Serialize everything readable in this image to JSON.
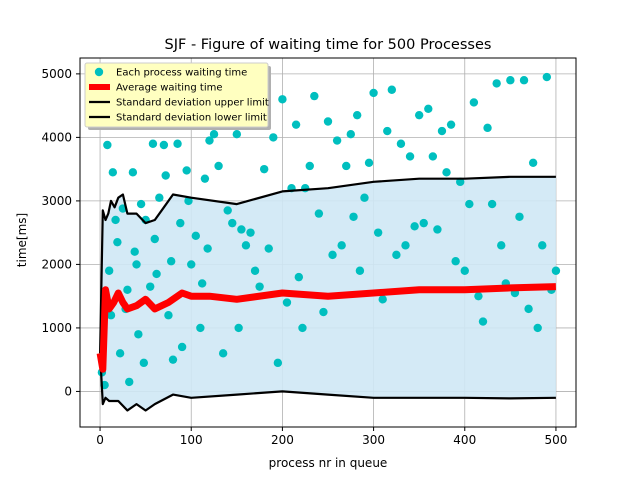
{
  "chart_data": {
    "type": "scatter",
    "title": "SJF - Figure of waiting time for 500 Processes",
    "xlabel": "process nr in queue",
    "ylabel": "time[ms]",
    "xlim": [
      -22,
      522
    ],
    "ylim": [
      -560,
      5250
    ],
    "x_ticks": [
      0,
      100,
      200,
      300,
      400,
      500
    ],
    "y_ticks": [
      0,
      1000,
      2000,
      3000,
      4000,
      5000
    ],
    "grid": true,
    "legend_position": "top-left",
    "colors": {
      "points": "#00bfbf",
      "average": "#ff0000",
      "std": "#000000",
      "band": "#cfe8f5",
      "legend_bg": "#ffffc0"
    },
    "series": [
      {
        "name": "Each process waiting time",
        "kind": "scatter",
        "sample_points": [
          [
            2,
            300
          ],
          [
            5,
            100
          ],
          [
            8,
            3880
          ],
          [
            10,
            1900
          ],
          [
            12,
            1200
          ],
          [
            14,
            3450
          ],
          [
            17,
            2700
          ],
          [
            19,
            2350
          ],
          [
            22,
            600
          ],
          [
            25,
            2880
          ],
          [
            28,
            1300
          ],
          [
            30,
            1600
          ],
          [
            32,
            150
          ],
          [
            36,
            3450
          ],
          [
            38,
            2200
          ],
          [
            40,
            2000
          ],
          [
            42,
            900
          ],
          [
            45,
            2950
          ],
          [
            48,
            450
          ],
          [
            50,
            2700
          ],
          [
            55,
            1650
          ],
          [
            58,
            3900
          ],
          [
            60,
            2400
          ],
          [
            62,
            1850
          ],
          [
            65,
            3050
          ],
          [
            70,
            3880
          ],
          [
            72,
            3400
          ],
          [
            75,
            1200
          ],
          [
            78,
            2050
          ],
          [
            80,
            500
          ],
          [
            85,
            3900
          ],
          [
            88,
            2650
          ],
          [
            90,
            700
          ],
          [
            95,
            3480
          ],
          [
            97,
            3000
          ],
          [
            100,
            2000
          ],
          [
            105,
            2450
          ],
          [
            110,
            1000
          ],
          [
            112,
            1700
          ],
          [
            115,
            3350
          ],
          [
            118,
            2250
          ],
          [
            120,
            3950
          ],
          [
            125,
            4050
          ],
          [
            130,
            3550
          ],
          [
            135,
            600
          ],
          [
            140,
            2850
          ],
          [
            145,
            2650
          ],
          [
            150,
            4050
          ],
          [
            152,
            1000
          ],
          [
            155,
            2550
          ],
          [
            160,
            2300
          ],
          [
            165,
            2500
          ],
          [
            170,
            1900
          ],
          [
            175,
            1650
          ],
          [
            180,
            3500
          ],
          [
            185,
            2250
          ],
          [
            190,
            4000
          ],
          [
            195,
            450
          ],
          [
            200,
            4600
          ],
          [
            205,
            1400
          ],
          [
            210,
            3200
          ],
          [
            215,
            4200
          ],
          [
            218,
            1800
          ],
          [
            222,
            1000
          ],
          [
            225,
            3200
          ],
          [
            230,
            3550
          ],
          [
            235,
            4650
          ],
          [
            240,
            2800
          ],
          [
            245,
            1250
          ],
          [
            250,
            4250
          ],
          [
            255,
            2150
          ],
          [
            260,
            3950
          ],
          [
            265,
            2300
          ],
          [
            270,
            3550
          ],
          [
            275,
            4050
          ],
          [
            278,
            2750
          ],
          [
            282,
            4350
          ],
          [
            285,
            1900
          ],
          [
            290,
            3050
          ],
          [
            295,
            3600
          ],
          [
            300,
            4700
          ],
          [
            305,
            2500
          ],
          [
            310,
            1450
          ],
          [
            315,
            4100
          ],
          [
            320,
            4750
          ],
          [
            325,
            2150
          ],
          [
            330,
            3900
          ],
          [
            335,
            2300
          ],
          [
            340,
            3700
          ],
          [
            345,
            2600
          ],
          [
            350,
            4350
          ],
          [
            355,
            2650
          ],
          [
            360,
            4450
          ],
          [
            365,
            3700
          ],
          [
            370,
            2550
          ],
          [
            375,
            4100
          ],
          [
            380,
            3450
          ],
          [
            385,
            4200
          ],
          [
            390,
            2050
          ],
          [
            395,
            3300
          ],
          [
            400,
            1900
          ],
          [
            405,
            2950
          ],
          [
            410,
            4550
          ],
          [
            415,
            1500
          ],
          [
            420,
            1100
          ],
          [
            425,
            4150
          ],
          [
            430,
            2950
          ],
          [
            435,
            4850
          ],
          [
            440,
            2300
          ],
          [
            445,
            1700
          ],
          [
            450,
            4900
          ],
          [
            455,
            1550
          ],
          [
            460,
            2750
          ],
          [
            465,
            4900
          ],
          [
            470,
            1300
          ],
          [
            475,
            3600
          ],
          [
            480,
            1000
          ],
          [
            485,
            2300
          ],
          [
            490,
            4950
          ],
          [
            495,
            1600
          ],
          [
            500,
            1900
          ]
        ]
      },
      {
        "name": "Average waiting time",
        "kind": "line",
        "summary_points": [
          [
            0,
            600
          ],
          [
            3,
            350
          ],
          [
            6,
            1600
          ],
          [
            10,
            1300
          ],
          [
            15,
            1400
          ],
          [
            20,
            1550
          ],
          [
            25,
            1400
          ],
          [
            30,
            1300
          ],
          [
            40,
            1350
          ],
          [
            50,
            1450
          ],
          [
            60,
            1300
          ],
          [
            75,
            1400
          ],
          [
            90,
            1550
          ],
          [
            100,
            1500
          ],
          [
            120,
            1500
          ],
          [
            150,
            1450
          ],
          [
            200,
            1550
          ],
          [
            250,
            1500
          ],
          [
            300,
            1550
          ],
          [
            350,
            1600
          ],
          [
            400,
            1600
          ],
          [
            450,
            1630
          ],
          [
            500,
            1650
          ]
        ]
      },
      {
        "name": "Standard deviation upper limit",
        "kind": "line",
        "summary_points": [
          [
            0,
            600
          ],
          [
            3,
            2850
          ],
          [
            6,
            2700
          ],
          [
            9,
            2800
          ],
          [
            12,
            3000
          ],
          [
            16,
            2900
          ],
          [
            20,
            3050
          ],
          [
            25,
            3100
          ],
          [
            30,
            2800
          ],
          [
            40,
            2800
          ],
          [
            50,
            2650
          ],
          [
            60,
            2700
          ],
          [
            70,
            2900
          ],
          [
            80,
            3100
          ],
          [
            100,
            3050
          ],
          [
            150,
            2950
          ],
          [
            200,
            3150
          ],
          [
            250,
            3200
          ],
          [
            300,
            3300
          ],
          [
            350,
            3350
          ],
          [
            400,
            3350
          ],
          [
            450,
            3380
          ],
          [
            500,
            3380
          ]
        ]
      },
      {
        "name": "Standard deviation lower limit",
        "kind": "line",
        "summary_points": [
          [
            0,
            600
          ],
          [
            3,
            -200
          ],
          [
            6,
            -100
          ],
          [
            10,
            -150
          ],
          [
            20,
            -150
          ],
          [
            30,
            -300
          ],
          [
            40,
            -200
          ],
          [
            50,
            -300
          ],
          [
            60,
            -200
          ],
          [
            80,
            -50
          ],
          [
            100,
            -100
          ],
          [
            150,
            -50
          ],
          [
            200,
            0
          ],
          [
            250,
            -50
          ],
          [
            300,
            -100
          ],
          [
            350,
            -100
          ],
          [
            400,
            -100
          ],
          [
            450,
            -110
          ],
          [
            500,
            -100
          ]
        ]
      }
    ]
  }
}
